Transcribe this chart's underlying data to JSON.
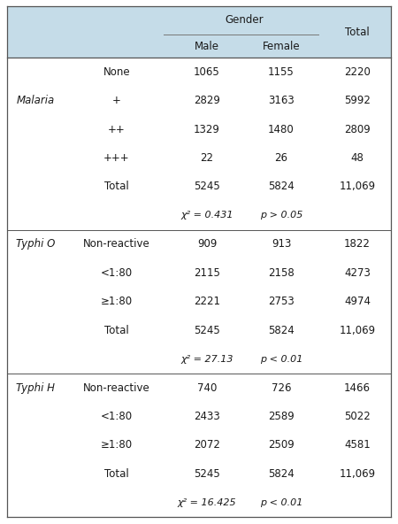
{
  "header_bg": "#c5dce8",
  "bg_color": "#ffffff",
  "text_color": "#1a1a1a",
  "gender_label": "Gender",
  "header_cols": [
    "Male",
    "Female",
    "Total"
  ],
  "rows": [
    {
      "cat": "",
      "sub": "None",
      "male": "1065",
      "female": "1155",
      "total": "2220",
      "chi": false
    },
    {
      "cat": "Malaria",
      "sub": "+",
      "male": "2829",
      "female": "3163",
      "total": "5992",
      "chi": false
    },
    {
      "cat": "",
      "sub": "++",
      "male": "1329",
      "female": "1480",
      "total": "2809",
      "chi": false
    },
    {
      "cat": "",
      "sub": "+++",
      "male": "22",
      "female": "26",
      "total": "48",
      "chi": false
    },
    {
      "cat": "",
      "sub": "Total",
      "male": "5245",
      "female": "5824",
      "total": "11,069",
      "chi": false
    },
    {
      "cat": "",
      "sub": "χ² = 0.431",
      "male": "p > 0.05",
      "female": "",
      "total": "",
      "chi": true
    },
    {
      "cat": "Typhi O",
      "sub": "Non-reactive",
      "male": "909",
      "female": "913",
      "total": "1822",
      "chi": false
    },
    {
      "cat": "",
      "sub": "<1:80",
      "male": "2115",
      "female": "2158",
      "total": "4273",
      "chi": false
    },
    {
      "cat": "",
      "sub": "≥1:80",
      "male": "2221",
      "female": "2753",
      "total": "4974",
      "chi": false
    },
    {
      "cat": "",
      "sub": "Total",
      "male": "5245",
      "female": "5824",
      "total": "11,069",
      "chi": false
    },
    {
      "cat": "",
      "sub": "χ² = 27.13",
      "male": "p < 0.01",
      "female": "",
      "total": "",
      "chi": true
    },
    {
      "cat": "Typhi H",
      "sub": "Non-reactive",
      "male": "740",
      "female": "726",
      "total": "1466",
      "chi": false
    },
    {
      "cat": "",
      "sub": "<1:80",
      "male": "2433",
      "female": "2589",
      "total": "5022",
      "chi": false
    },
    {
      "cat": "",
      "sub": "≥1:80",
      "male": "2072",
      "female": "2509",
      "total": "4581",
      "chi": false
    },
    {
      "cat": "",
      "sub": "Total",
      "male": "5245",
      "female": "5824",
      "total": "11,069",
      "chi": false
    },
    {
      "cat": "",
      "sub": "χ² = 16.425",
      "male": "p < 0.01",
      "female": "",
      "total": "",
      "chi": true
    }
  ],
  "section_dividers": [
    6,
    11
  ],
  "font_size": 8.5,
  "header_font_size": 8.5
}
